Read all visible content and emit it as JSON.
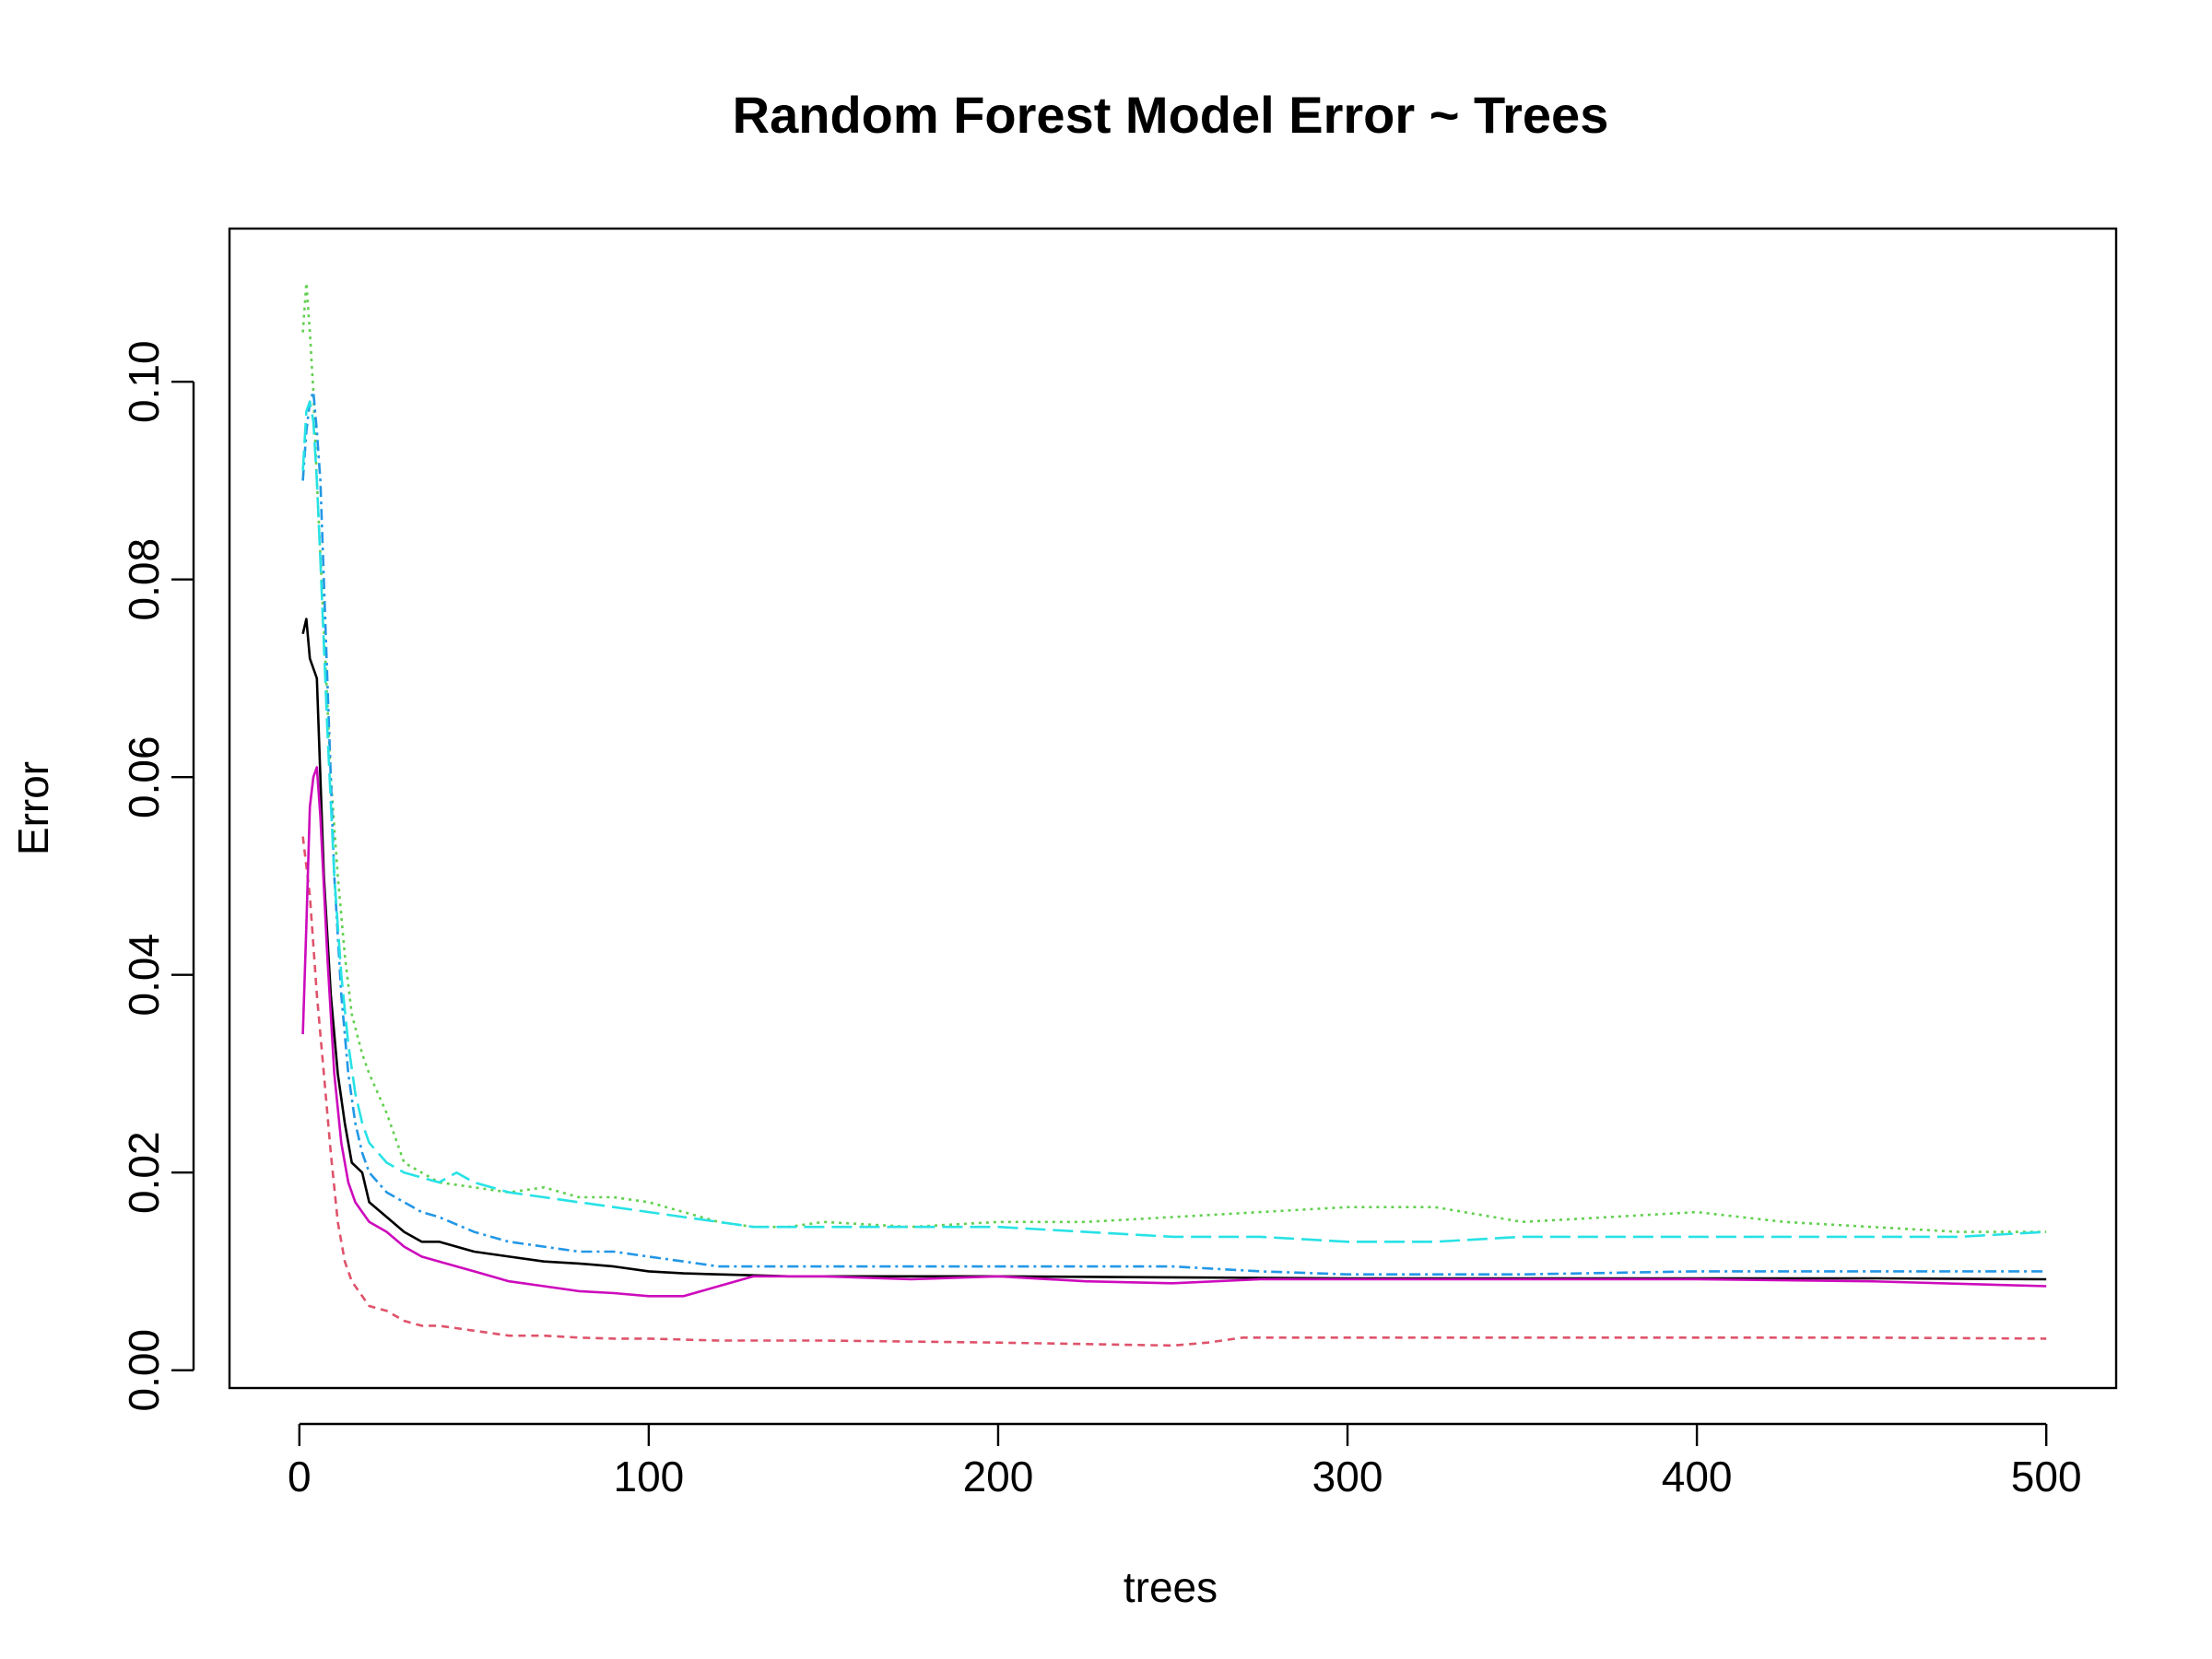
{
  "chart_data": {
    "type": "line",
    "title": "Random Forest Model Error ~ Trees",
    "xlabel": "trees",
    "ylabel": "Error",
    "xlim": [
      -20,
      520
    ],
    "ylim": [
      -0.0018,
      0.1155
    ],
    "x_ticks": [
      0,
      100,
      200,
      300,
      400,
      500
    ],
    "x_tick_labels": [
      "0",
      "100",
      "200",
      "300",
      "400",
      "500"
    ],
    "y_ticks": [
      0.0,
      0.02,
      0.04,
      0.06,
      0.08,
      0.1
    ],
    "y_tick_labels": [
      "0.00",
      "0.02",
      "0.04",
      "0.06",
      "0.08",
      "0.10"
    ],
    "grid": false,
    "legend": "none",
    "series": [
      {
        "color": "#000000",
        "dash": "solid",
        "x": [
          1,
          2,
          3,
          5,
          7,
          9,
          11,
          13,
          15,
          18,
          20,
          25,
          30,
          35,
          40,
          50,
          60,
          70,
          80,
          90,
          100,
          110,
          120,
          130,
          140,
          150,
          175,
          200,
          250,
          300,
          350,
          400,
          450,
          500
        ],
        "y": [
          0.0745,
          0.076,
          0.072,
          0.07,
          0.05,
          0.038,
          0.03,
          0.025,
          0.021,
          0.02,
          0.017,
          0.0155,
          0.014,
          0.013,
          0.013,
          0.012,
          0.0115,
          0.011,
          0.0108,
          0.0105,
          0.01,
          0.0098,
          0.0097,
          0.0096,
          0.0095,
          0.0095,
          0.0095,
          0.0095,
          0.0094,
          0.0093,
          0.0093,
          0.0093,
          0.0093,
          0.0092
        ]
      },
      {
        "color": "#df536b",
        "dash": "8,6",
        "x": [
          1,
          3,
          5,
          7,
          9,
          11,
          13,
          15,
          18,
          20,
          25,
          30,
          35,
          40,
          50,
          60,
          70,
          80,
          90,
          100,
          120,
          150,
          200,
          250,
          260,
          270,
          300,
          350,
          400,
          450,
          500
        ],
        "y": [
          0.054,
          0.048,
          0.038,
          0.03,
          0.022,
          0.015,
          0.011,
          0.009,
          0.0075,
          0.0065,
          0.006,
          0.005,
          0.0045,
          0.0045,
          0.004,
          0.0035,
          0.0035,
          0.0033,
          0.0032,
          0.0032,
          0.003,
          0.003,
          0.0028,
          0.0025,
          0.0028,
          0.0033,
          0.0033,
          0.0033,
          0.0033,
          0.0033,
          0.0032
        ]
      },
      {
        "color": "#61d04f",
        "dash": "3,5",
        "x": [
          1,
          2,
          3,
          4,
          5,
          7,
          9,
          11,
          13,
          15,
          18,
          20,
          25,
          30,
          35,
          40,
          50,
          60,
          70,
          80,
          90,
          100,
          110,
          120,
          130,
          140,
          150,
          175,
          200,
          225,
          250,
          275,
          300,
          325,
          350,
          375,
          400,
          425,
          450,
          475,
          500
        ],
        "y": [
          0.105,
          0.11,
          0.105,
          0.099,
          0.09,
          0.075,
          0.06,
          0.05,
          0.042,
          0.036,
          0.032,
          0.03,
          0.026,
          0.021,
          0.02,
          0.019,
          0.0185,
          0.018,
          0.0185,
          0.0175,
          0.0175,
          0.017,
          0.016,
          0.015,
          0.0145,
          0.0145,
          0.015,
          0.0145,
          0.015,
          0.015,
          0.0155,
          0.016,
          0.0165,
          0.0165,
          0.015,
          0.0155,
          0.016,
          0.015,
          0.0145,
          0.014,
          0.014
        ]
      },
      {
        "color": "#2297e6",
        "dash": "12,5,3,5",
        "x": [
          1,
          2,
          3,
          4,
          5,
          6,
          8,
          10,
          12,
          14,
          16,
          18,
          20,
          25,
          30,
          35,
          40,
          50,
          60,
          70,
          80,
          90,
          100,
          110,
          120,
          130,
          140,
          150,
          175,
          200,
          225,
          250,
          275,
          300,
          350,
          400,
          450,
          500
        ],
        "y": [
          0.09,
          0.095,
          0.098,
          0.099,
          0.095,
          0.09,
          0.07,
          0.05,
          0.038,
          0.03,
          0.025,
          0.022,
          0.02,
          0.018,
          0.017,
          0.016,
          0.0155,
          0.014,
          0.013,
          0.0125,
          0.012,
          0.012,
          0.0115,
          0.011,
          0.0105,
          0.0105,
          0.0105,
          0.0105,
          0.0105,
          0.0105,
          0.0105,
          0.0105,
          0.01,
          0.0097,
          0.0097,
          0.01,
          0.01,
          0.01
        ]
      },
      {
        "color": "#28e2e5",
        "dash": "22,8",
        "x": [
          1,
          2,
          3,
          4,
          5,
          6,
          8,
          10,
          12,
          14,
          16,
          18,
          20,
          25,
          30,
          35,
          40,
          45,
          50,
          60,
          70,
          80,
          90,
          100,
          110,
          120,
          130,
          140,
          150,
          175,
          200,
          225,
          250,
          275,
          300,
          325,
          350,
          375,
          400,
          425,
          450,
          475,
          500
        ],
        "y": [
          0.091,
          0.097,
          0.098,
          0.096,
          0.09,
          0.082,
          0.065,
          0.05,
          0.04,
          0.033,
          0.028,
          0.025,
          0.023,
          0.021,
          0.02,
          0.0195,
          0.019,
          0.02,
          0.019,
          0.018,
          0.0175,
          0.017,
          0.0165,
          0.016,
          0.0155,
          0.015,
          0.0145,
          0.0145,
          0.0145,
          0.0145,
          0.0145,
          0.014,
          0.0135,
          0.0135,
          0.013,
          0.013,
          0.0135,
          0.0135,
          0.0135,
          0.0135,
          0.0135,
          0.0135,
          0.014
        ]
      },
      {
        "color": "#cd0bbc",
        "dash": "solid",
        "x": [
          1,
          2,
          3,
          4,
          5,
          6,
          8,
          10,
          12,
          14,
          16,
          18,
          20,
          25,
          30,
          35,
          40,
          50,
          60,
          70,
          80,
          90,
          100,
          110,
          120,
          130,
          140,
          150,
          175,
          200,
          225,
          250,
          275,
          300,
          350,
          400,
          450,
          500
        ],
        "y": [
          0.034,
          0.045,
          0.057,
          0.06,
          0.061,
          0.056,
          0.042,
          0.03,
          0.023,
          0.019,
          0.017,
          0.016,
          0.015,
          0.014,
          0.0125,
          0.0115,
          0.011,
          0.01,
          0.009,
          0.0085,
          0.008,
          0.0078,
          0.0075,
          0.0075,
          0.0085,
          0.0095,
          0.0095,
          0.0095,
          0.0092,
          0.0095,
          0.009,
          0.0088,
          0.0092,
          0.0092,
          0.0092,
          0.0092,
          0.009,
          0.0085
        ]
      }
    ]
  }
}
